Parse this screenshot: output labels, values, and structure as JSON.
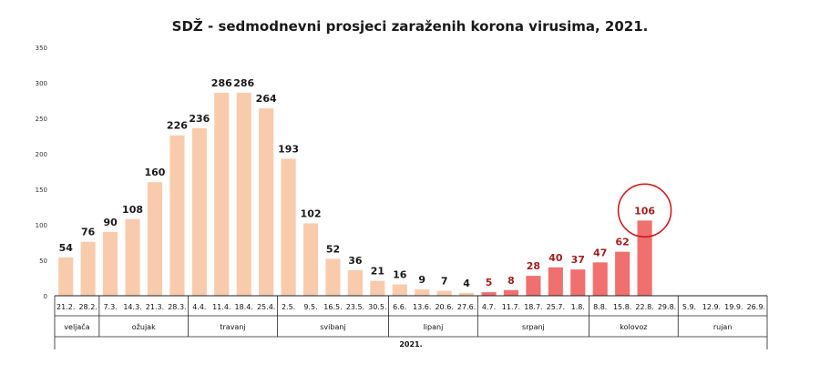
{
  "chart_data": {
    "type": "bar",
    "title": "SDŽ - sedmodnevni prosjeci zaraženih korona virusima, 2021.",
    "xlabel": "",
    "ylabel": "",
    "ylim": [
      0,
      350
    ],
    "yticks": [
      0,
      50,
      100,
      150,
      200,
      250,
      300,
      350
    ],
    "grid": false,
    "legend": "none",
    "categories": [
      "21.2.",
      "28.2.",
      "7.3.",
      "14.3.",
      "21.3.",
      "28.3.",
      "4.4.",
      "11.4.",
      "18.4.",
      "25.4.",
      "2.5.",
      "9.5.",
      "16.5.",
      "23.5.",
      "30.5.",
      "6.6.",
      "13.6.",
      "20.6.",
      "27.6.",
      "4.7.",
      "11.7.",
      "18.7.",
      "25.7.",
      "1.8.",
      "8.8.",
      "15.8.",
      "22.8.",
      "29.8.",
      "5.9.",
      "12.9.",
      "19.9.",
      "26.9."
    ],
    "values": [
      54,
      76,
      90,
      108,
      160,
      226,
      236,
      286,
      286,
      264,
      193,
      102,
      52,
      36,
      21,
      16,
      9,
      7,
      4,
      5,
      8,
      28,
      40,
      37,
      47,
      62,
      106,
      null,
      null,
      null,
      null,
      null
    ],
    "data_labels": [
      "54",
      "76",
      "90",
      "108",
      "160",
      "226",
      "236",
      "286",
      "286",
      "264",
      "193",
      "102",
      "52",
      "36",
      "21",
      "16",
      "9",
      "7",
      "4",
      "5",
      "8",
      "28",
      "40",
      "37",
      "47",
      "62",
      "106",
      "",
      "",
      "",
      "",
      ""
    ],
    "highlight_from_index": 19,
    "circled_index": 26,
    "months": [
      {
        "label": "veljača",
        "start": 0,
        "end": 1
      },
      {
        "label": "ožujak",
        "start": 2,
        "end": 5
      },
      {
        "label": "travanj",
        "start": 6,
        "end": 9
      },
      {
        "label": "svibanj",
        "start": 10,
        "end": 14
      },
      {
        "label": "lipanj",
        "start": 15,
        "end": 18
      },
      {
        "label": "srpanj",
        "start": 19,
        "end": 23
      },
      {
        "label": "kolovoz",
        "start": 24,
        "end": 27
      },
      {
        "label": "rujan",
        "start": 28,
        "end": 31
      }
    ],
    "year_label": "2021.",
    "colors": {
      "bar": "#f8cbad",
      "bar_highlight": "#f07070",
      "label": "#1a1a1a",
      "label_highlight": "#a02020",
      "circle": "#cc1f1f"
    }
  }
}
